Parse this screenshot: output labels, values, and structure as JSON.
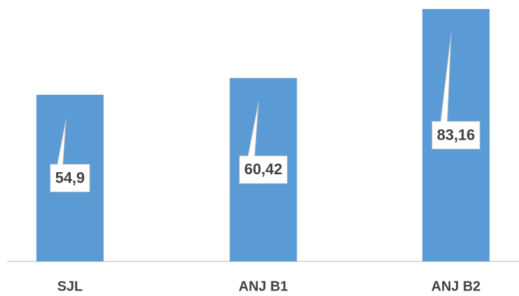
{
  "chart_data": {
    "type": "bar",
    "categories": [
      "SJL",
      "ANJ B1",
      "ANJ B2"
    ],
    "values": [
      54.9,
      60.42,
      83.16
    ],
    "value_labels": [
      "54,9",
      "60,42",
      "83,16"
    ],
    "color": "#5b9bd5"
  }
}
